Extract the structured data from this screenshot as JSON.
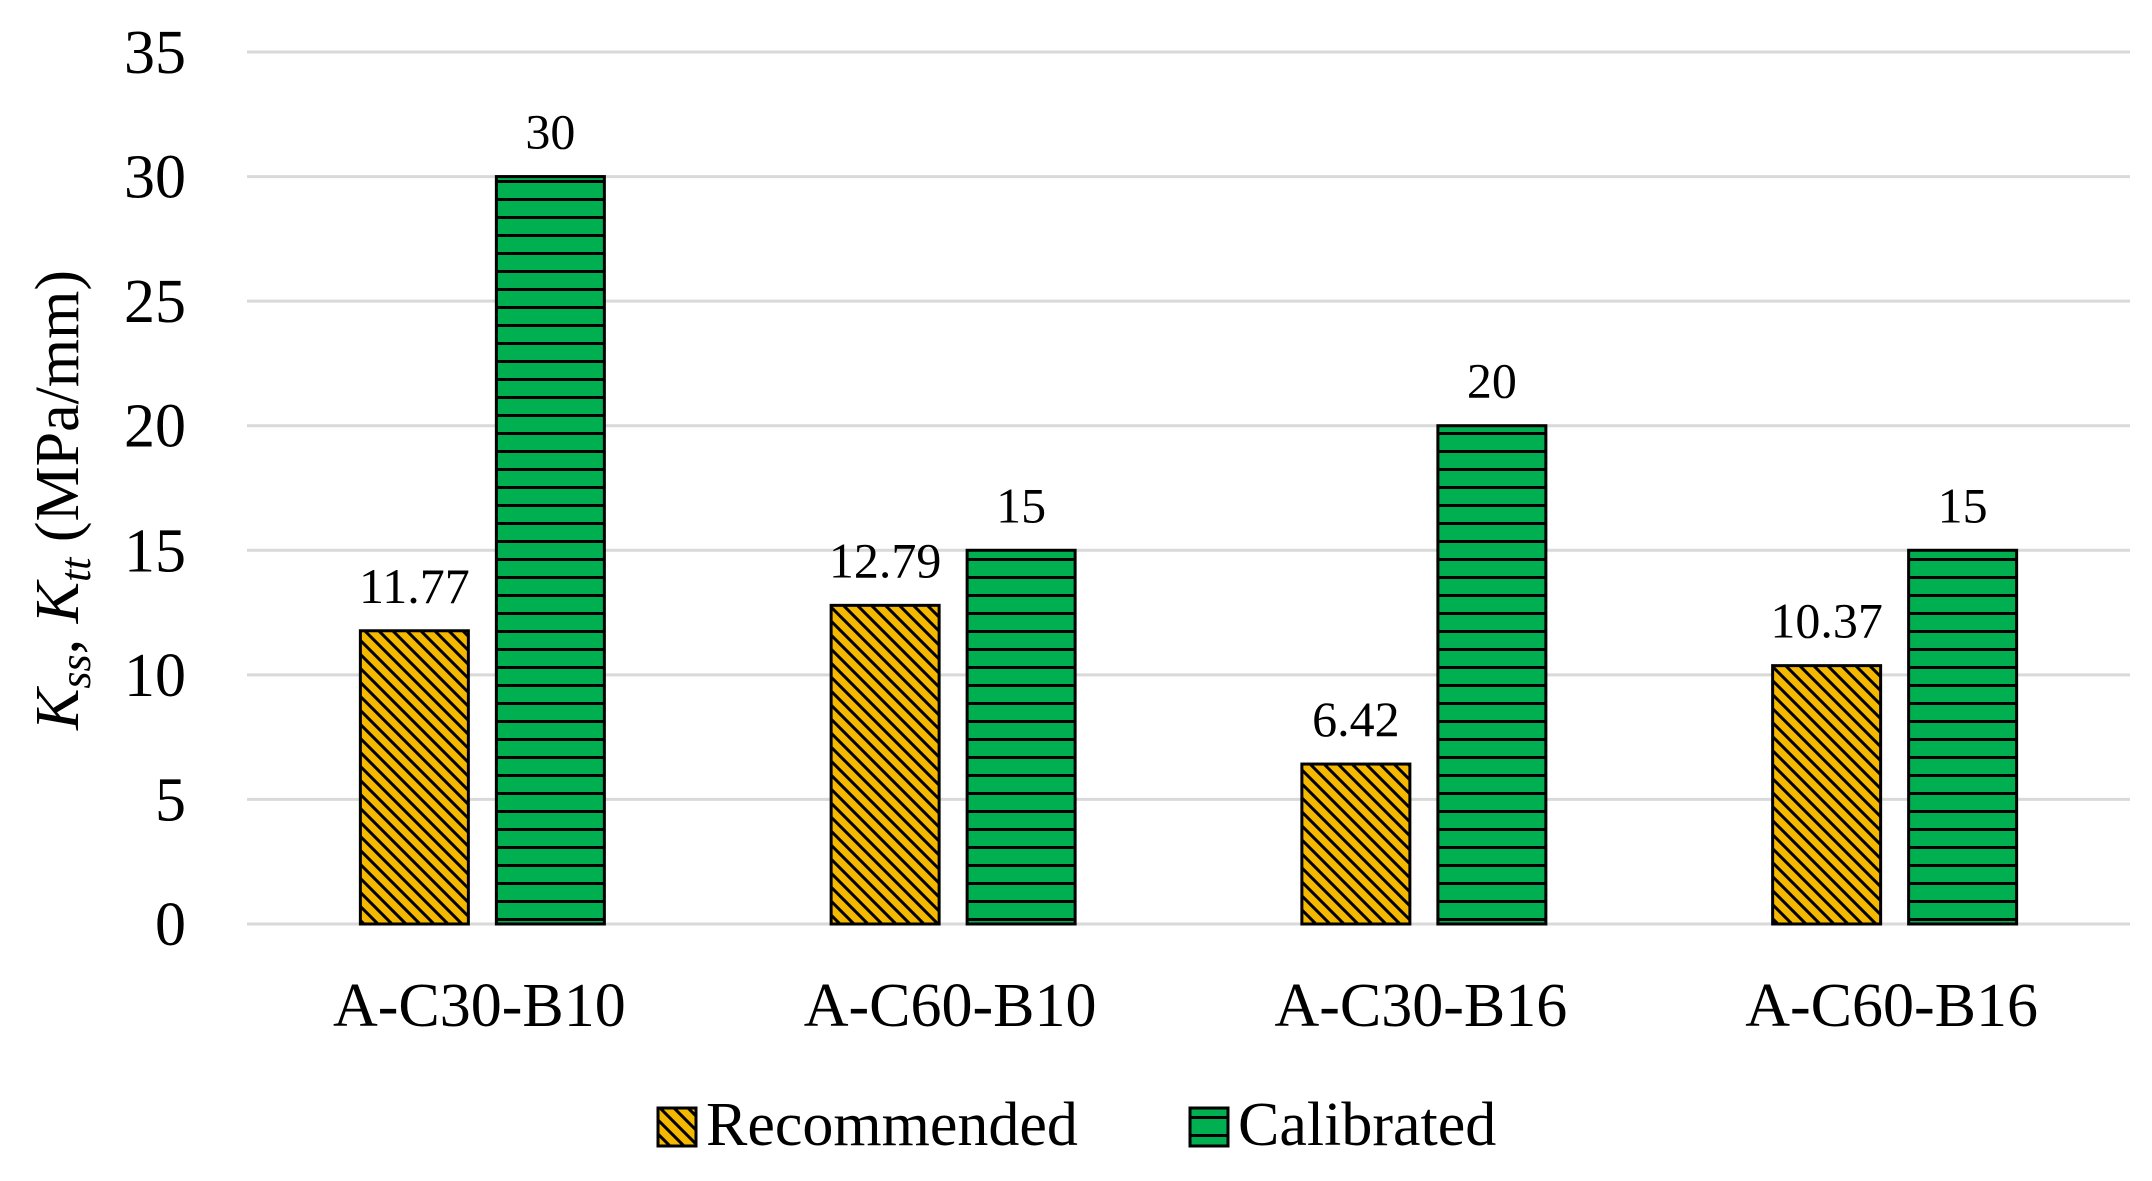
{
  "chart_data": {
    "type": "bar",
    "title": "",
    "xlabel": "",
    "ylabel": {
      "k1_main": "K",
      "k1_sub": "ss",
      "sep": ", ",
      "k2_main": "K",
      "k2_sub": "tt",
      "unit": " (MPa/mm)"
    },
    "ylim": [
      0,
      35
    ],
    "yticks": [
      0,
      5,
      10,
      15,
      20,
      25,
      30,
      35
    ],
    "grid": true,
    "legend_position": "bottom",
    "categories": [
      "A-C30-B10",
      "A-C60-B10",
      "A-C30-B16",
      "A-C60-B16"
    ],
    "series": [
      {
        "name": "Recommended",
        "values": [
          11.77,
          12.79,
          6.42,
          10.37
        ],
        "labels": [
          "11.77",
          "12.79",
          "6.42",
          "10.37"
        ],
        "color": "#F5B800",
        "pattern": "diagonal-hatch"
      },
      {
        "name": "Calibrated",
        "values": [
          30,
          15,
          20,
          15
        ],
        "labels": [
          "30",
          "15",
          "20",
          "15"
        ],
        "color": "#00B050",
        "pattern": "horizontal-stripes"
      }
    ]
  }
}
